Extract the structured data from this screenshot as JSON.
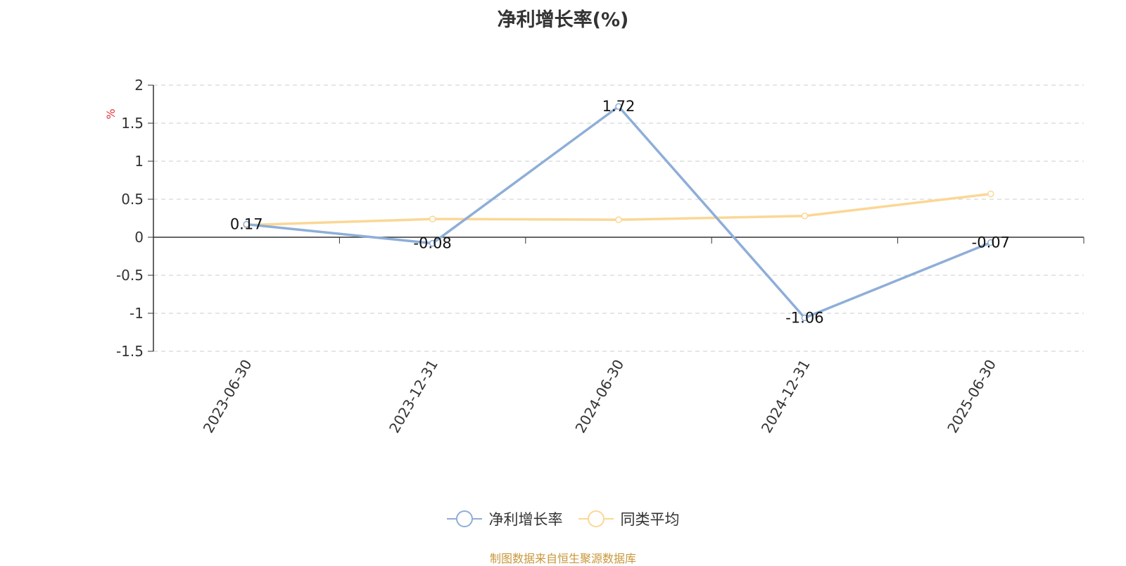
{
  "chart_data": {
    "type": "line",
    "title": "净利增长率(%)",
    "ylabel": "%",
    "x": [
      "2023-06-30",
      "2023-12-31",
      "2024-06-30",
      "2024-12-31",
      "2025-06-30"
    ],
    "ylim": [
      -1.5,
      2
    ],
    "yticks": [
      2,
      1.5,
      1,
      0.5,
      0,
      -0.5,
      -1,
      -1.5
    ],
    "grid": true,
    "legend_position": "bottom",
    "series": [
      {
        "name": "净利增长率",
        "values": [
          0.17,
          -0.08,
          1.72,
          -1.06,
          -0.07
        ],
        "color": "#8eaed8",
        "show_labels": true
      },
      {
        "name": "同类平均",
        "values": [
          0.16,
          0.24,
          0.23,
          0.28,
          0.57
        ],
        "color": "#fbd795",
        "show_labels": false
      }
    ]
  },
  "footer": {
    "source": "制图数据来自恒生聚源数据库"
  }
}
